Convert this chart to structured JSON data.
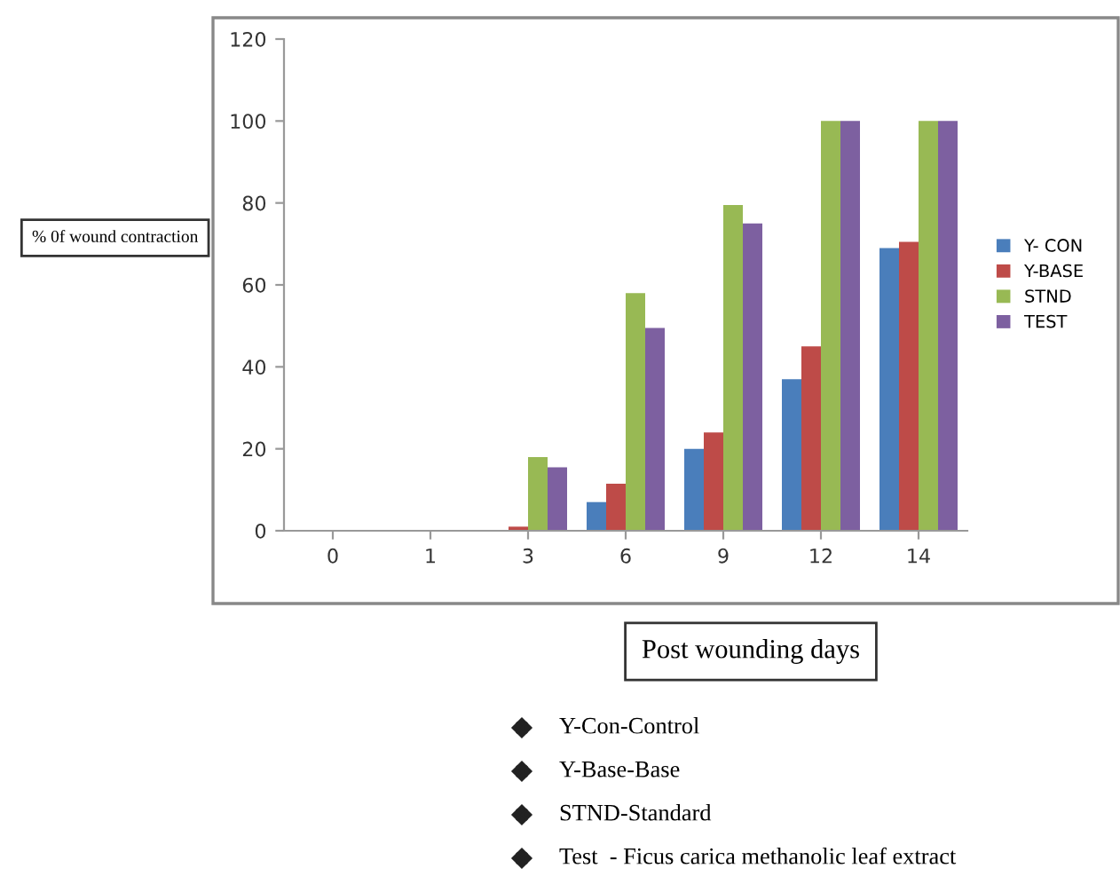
{
  "chart_data": {
    "type": "bar",
    "categories": [
      "0",
      "1",
      "3",
      "6",
      "9",
      "12",
      "14"
    ],
    "series": [
      {
        "name": "Y- CON",
        "color": "#4a7ebb",
        "values": [
          0,
          0,
          0,
          7,
          20,
          37,
          69
        ]
      },
      {
        "name": "Y-BASE",
        "color": "#be4b48",
        "values": [
          0,
          0,
          1,
          11.5,
          24,
          45,
          70.5
        ]
      },
      {
        "name": "STND",
        "color": "#98b954",
        "values": [
          0,
          0,
          18,
          58,
          79.5,
          100,
          100
        ]
      },
      {
        "name": "TEST",
        "color": "#7d60a0",
        "values": [
          0,
          0,
          15.5,
          49.5,
          75,
          100,
          100
        ]
      }
    ],
    "ylim": [
      0,
      120
    ],
    "yticks": [
      0,
      20,
      40,
      60,
      80,
      100,
      120
    ],
    "grid": false,
    "legend": "right",
    "xlabel": "Post wounding days",
    "ylabel": "% 0f wound contraction",
    "annotations": [
      "Y-Con-Control",
      "Y-Base-Base",
      "STND-Standard",
      "Test  - Ficus carica methanolic leaf extract"
    ]
  }
}
